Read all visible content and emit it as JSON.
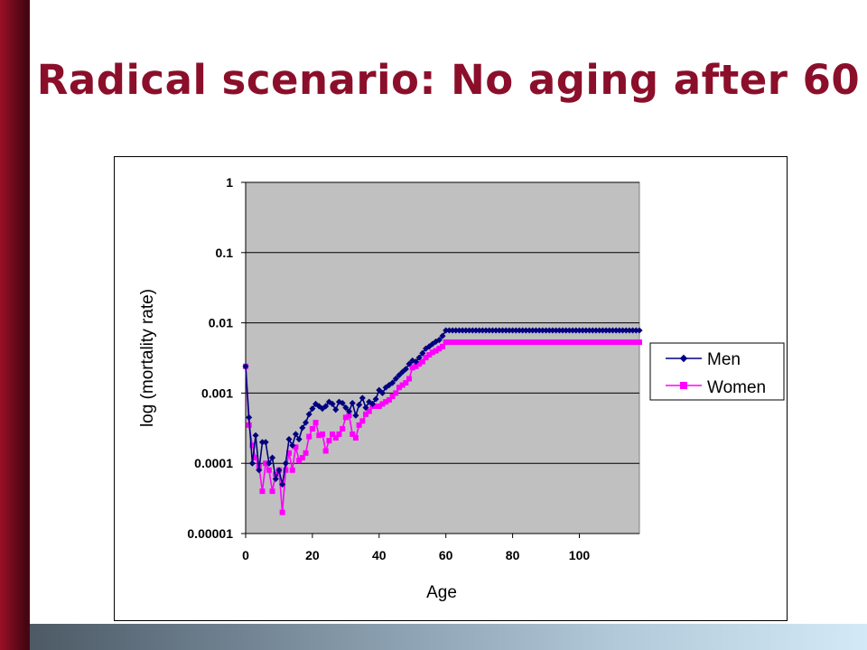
{
  "slide": {
    "title": "Radical scenario: No aging after 60"
  },
  "colors": {
    "title": "#8b0f2a",
    "plot_background": "#c0c0c0",
    "men": "#000080",
    "women": "#ff00ff"
  },
  "chart_data": {
    "type": "line",
    "title": "",
    "xlabel": "Age",
    "ylabel": "log (mortality rate)",
    "y_scale": "log",
    "xlim": [
      0,
      118
    ],
    "ylim": [
      1e-05,
      1
    ],
    "x_ticks": [
      0,
      20,
      40,
      60,
      80,
      100
    ],
    "y_ticks": [
      1,
      0.1,
      0.01,
      0.001,
      0.0001,
      1e-05
    ],
    "y_tick_labels": [
      "1",
      "0.1",
      "0.01",
      "0.001",
      "0.0001",
      "0.00001"
    ],
    "grid": "horizontal",
    "legend": "right",
    "series": [
      {
        "name": "Men",
        "marker": "diamond",
        "x": [
          0,
          1,
          2,
          3,
          4,
          5,
          6,
          7,
          8,
          9,
          10,
          11,
          12,
          13,
          14,
          15,
          16,
          17,
          18,
          19,
          20,
          21,
          22,
          23,
          24,
          25,
          26,
          27,
          28,
          29,
          30,
          31,
          32,
          33,
          34,
          35,
          36,
          37,
          38,
          39,
          40,
          41,
          42,
          43,
          44,
          45,
          46,
          47,
          48,
          49,
          50,
          51,
          52,
          53,
          54,
          55,
          56,
          57,
          58,
          59,
          60,
          61,
          62,
          63,
          64,
          65,
          66,
          67,
          68,
          69,
          70,
          71,
          72,
          73,
          74,
          75,
          76,
          77,
          78,
          79,
          80,
          81,
          82,
          83,
          84,
          85,
          86,
          87,
          88,
          89,
          90,
          91,
          92,
          93,
          94,
          95,
          96,
          97,
          98,
          99,
          100,
          101,
          102,
          103,
          104,
          105,
          106,
          107,
          108,
          109,
          110,
          111,
          112,
          113,
          114,
          115,
          116,
          117,
          118
        ],
        "y": [
          0.0024,
          0.00045,
          0.0001,
          0.00025,
          8e-05,
          0.0002,
          0.0002,
          0.0001,
          0.00012,
          6e-05,
          8e-05,
          5e-05,
          0.0001,
          0.00022,
          0.00018,
          0.00026,
          0.00022,
          0.00032,
          0.00038,
          0.0005,
          0.0006,
          0.0007,
          0.00065,
          0.0006,
          0.00065,
          0.00075,
          0.0007,
          0.00058,
          0.00075,
          0.00072,
          0.00062,
          0.00055,
          0.00072,
          0.00048,
          0.00068,
          0.00085,
          0.00062,
          0.00075,
          0.0007,
          0.00082,
          0.0011,
          0.001,
          0.0012,
          0.0013,
          0.0014,
          0.0016,
          0.0018,
          0.002,
          0.0022,
          0.0026,
          0.0029,
          0.0028,
          0.0032,
          0.0037,
          0.0043,
          0.0046,
          0.005,
          0.0054,
          0.0057,
          0.0065,
          0.0078,
          0.0078,
          0.0078,
          0.0078,
          0.0078,
          0.0078,
          0.0078,
          0.0078,
          0.0078,
          0.0078,
          0.0078,
          0.0078,
          0.0078,
          0.0078,
          0.0078,
          0.0078,
          0.0078,
          0.0078,
          0.0078,
          0.0078,
          0.0078,
          0.0078,
          0.0078,
          0.0078,
          0.0078,
          0.0078,
          0.0078,
          0.0078,
          0.0078,
          0.0078,
          0.0078,
          0.0078,
          0.0078,
          0.0078,
          0.0078,
          0.0078,
          0.0078,
          0.0078,
          0.0078,
          0.0078,
          0.0078,
          0.0078,
          0.0078,
          0.0078,
          0.0078,
          0.0078,
          0.0078,
          0.0078,
          0.0078,
          0.0078,
          0.0078,
          0.0078,
          0.0078,
          0.0078,
          0.0078,
          0.0078,
          0.0078,
          0.0078,
          0.0078
        ]
      },
      {
        "name": "Women",
        "marker": "square",
        "x": [
          0,
          1,
          2,
          3,
          4,
          5,
          6,
          7,
          8,
          9,
          10,
          11,
          12,
          13,
          14,
          15,
          16,
          17,
          18,
          19,
          20,
          21,
          22,
          23,
          24,
          25,
          26,
          27,
          28,
          29,
          30,
          31,
          32,
          33,
          34,
          35,
          36,
          37,
          38,
          39,
          40,
          41,
          42,
          43,
          44,
          45,
          46,
          47,
          48,
          49,
          50,
          51,
          52,
          53,
          54,
          55,
          56,
          57,
          58,
          59,
          60,
          61,
          62,
          63,
          64,
          65,
          66,
          67,
          68,
          69,
          70,
          71,
          72,
          73,
          74,
          75,
          76,
          77,
          78,
          79,
          80,
          81,
          82,
          83,
          84,
          85,
          86,
          87,
          88,
          89,
          90,
          91,
          92,
          93,
          94,
          95,
          96,
          97,
          98,
          99,
          100,
          101,
          102,
          103,
          104,
          105,
          106,
          107,
          108,
          109,
          110,
          111,
          112,
          113,
          114,
          115,
          116,
          117,
          118
        ],
        "y": [
          0.0024,
          0.00035,
          0.00018,
          0.00012,
          9e-05,
          4e-05,
          0.0001,
          8e-05,
          4e-05,
          7e-05,
          8e-05,
          2e-05,
          8e-05,
          0.00014,
          8e-05,
          0.00017,
          0.00011,
          0.00012,
          0.00014,
          0.00024,
          0.00031,
          0.00038,
          0.00025,
          0.00026,
          0.00015,
          0.00021,
          0.00026,
          0.00023,
          0.00026,
          0.00031,
          0.00045,
          0.00048,
          0.00026,
          0.00023,
          0.00035,
          0.0004,
          0.0005,
          0.00055,
          0.00065,
          0.00065,
          0.00065,
          0.0007,
          0.00075,
          0.0008,
          0.0009,
          0.001,
          0.0012,
          0.0013,
          0.0014,
          0.0016,
          0.0023,
          0.0024,
          0.0026,
          0.0028,
          0.0032,
          0.0035,
          0.0038,
          0.004,
          0.0043,
          0.0046,
          0.0053,
          0.0053,
          0.0053,
          0.0053,
          0.0053,
          0.0053,
          0.0053,
          0.0053,
          0.0053,
          0.0053,
          0.0053,
          0.0053,
          0.0053,
          0.0053,
          0.0053,
          0.0053,
          0.0053,
          0.0053,
          0.0053,
          0.0053,
          0.0053,
          0.0053,
          0.0053,
          0.0053,
          0.0053,
          0.0053,
          0.0053,
          0.0053,
          0.0053,
          0.0053,
          0.0053,
          0.0053,
          0.0053,
          0.0053,
          0.0053,
          0.0053,
          0.0053,
          0.0053,
          0.0053,
          0.0053,
          0.0053,
          0.0053,
          0.0053,
          0.0053,
          0.0053,
          0.0053,
          0.0053,
          0.0053,
          0.0053,
          0.0053,
          0.0053,
          0.0053,
          0.0053,
          0.0053,
          0.0053,
          0.0053,
          0.0053,
          0.0053,
          0.0053
        ]
      }
    ]
  }
}
